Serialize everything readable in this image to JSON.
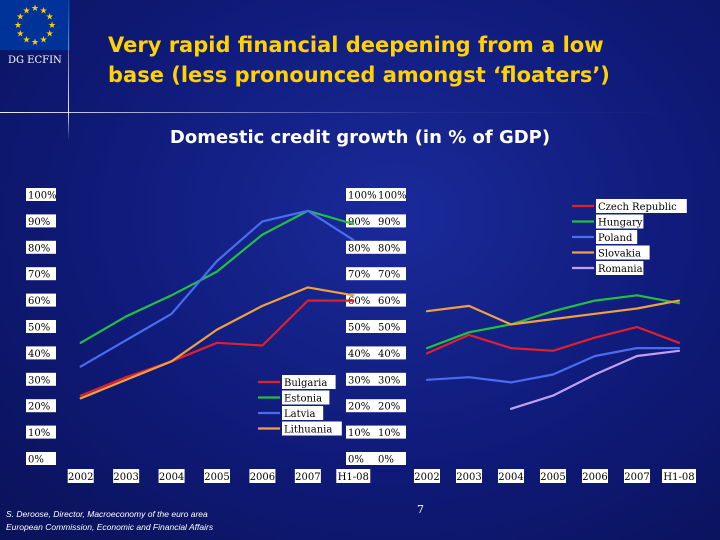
{
  "org_label": "DG ECFIN",
  "title_line1": "Very rapid financial deepening from a low",
  "title_line2": "base (less pronounced amongst ‘floaters’)",
  "subtitle": "Domestic credit growth (in % of GDP)",
  "footer_line1": "S. Deroose, Director, Macroeconomy of the euro area",
  "footer_line2": "European Commission, Economic and Financial Affairs",
  "page_number": "7",
  "colors": {
    "title": "#ffd200",
    "flag_blue": "#003399",
    "star": "#ffcc00"
  },
  "chart_data": [
    {
      "type": "line",
      "x": [
        "2002",
        "2003",
        "2004",
        "2005",
        "2006",
        "2007",
        "H1-08"
      ],
      "ylim": [
        0,
        100
      ],
      "yticks": [
        "0%",
        "10%",
        "20%",
        "30%",
        "40%",
        "50%",
        "60%",
        "70%",
        "80%",
        "90%",
        "100%"
      ],
      "legend_position": "bottom-right",
      "series": [
        {
          "name": "Bulgaria",
          "color": "#e0202c",
          "values": [
            24,
            31,
            37,
            44,
            43,
            60,
            60
          ]
        },
        {
          "name": "Estonia",
          "color": "#22c040",
          "values": [
            44,
            54,
            62,
            71,
            85,
            94,
            89
          ]
        },
        {
          "name": "Latvia",
          "color": "#4a6cf0",
          "values": [
            35,
            45,
            55,
            75,
            90,
            94,
            83
          ]
        },
        {
          "name": "Lithuania",
          "color": "#f0a040",
          "values": [
            23,
            30,
            37,
            49,
            58,
            65,
            62
          ]
        }
      ]
    },
    {
      "type": "line",
      "x": [
        "2002",
        "2003",
        "2004",
        "2005",
        "2006",
        "2007",
        "H1-08"
      ],
      "ylim": [
        0,
        100
      ],
      "yticks": [
        "0%",
        "10%",
        "20%",
        "30%",
        "40%",
        "50%",
        "60%",
        "70%",
        "80%",
        "90%",
        "100%"
      ],
      "legend_position": "top-right",
      "series": [
        {
          "name": "Czech Republic",
          "color": "#e0202c",
          "values": [
            40,
            47,
            42,
            41,
            46,
            50,
            44
          ]
        },
        {
          "name": "Hungary",
          "color": "#22c040",
          "values": [
            42,
            48,
            51,
            56,
            60,
            62,
            59
          ]
        },
        {
          "name": "Poland",
          "color": "#4a6cf0",
          "values": [
            30,
            31,
            29,
            32,
            39,
            42,
            42
          ]
        },
        {
          "name": "Slovakia",
          "color": "#f0a040",
          "values": [
            56,
            58,
            51,
            53,
            55,
            57,
            60
          ]
        },
        {
          "name": "Romania",
          "color": "#c0a0f0",
          "values": [
            null,
            null,
            19,
            24,
            32,
            39,
            41
          ]
        }
      ]
    }
  ]
}
